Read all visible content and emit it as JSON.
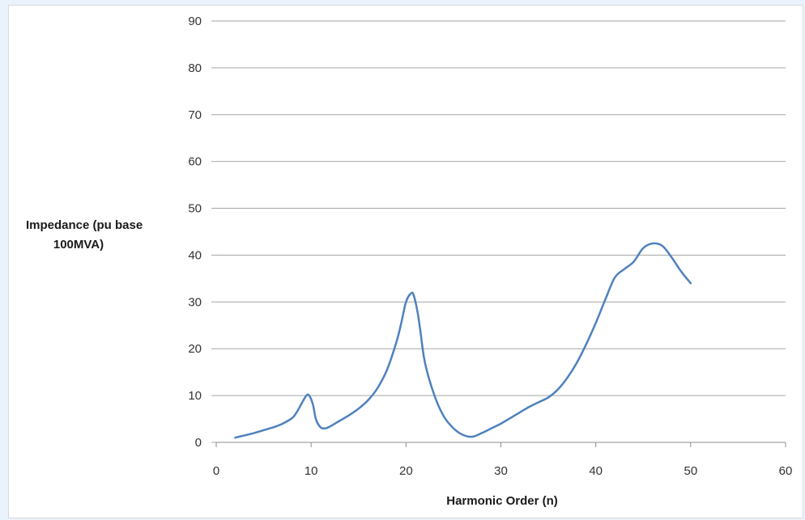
{
  "chart_data": {
    "type": "line",
    "title": "",
    "xlabel": "Harmonic Order (n)",
    "ylabel_lines": [
      "Impedance (pu base",
      "100MVA)"
    ],
    "xlim": [
      0,
      60
    ],
    "ylim": [
      0,
      90
    ],
    "xticks": [
      0,
      10,
      20,
      30,
      40,
      50,
      60
    ],
    "yticks": [
      0,
      10,
      20,
      30,
      40,
      50,
      60,
      70,
      80,
      90
    ],
    "grid": "horizontal",
    "legend": "none",
    "line_color": "#4f81bd",
    "series": [
      {
        "x": [
          2,
          3,
          4,
          5,
          6,
          7,
          8,
          8.5,
          9,
          9.5,
          9.8,
          10.2,
          10.5,
          11,
          11.5,
          12,
          13,
          14,
          15,
          16,
          17,
          18,
          19,
          19.5,
          20,
          20.5,
          20.8,
          21.2,
          21.5,
          22,
          23,
          24,
          25,
          26,
          27,
          28,
          29,
          30,
          31,
          32,
          33,
          34,
          35,
          36,
          37,
          38,
          39,
          40,
          41,
          42,
          43,
          44,
          45,
          46,
          47,
          48,
          49,
          50
        ],
        "values": [
          1,
          1.5,
          2,
          2.6,
          3.2,
          4,
          5.2,
          6.5,
          8.3,
          10,
          10,
          8,
          5,
          3.2,
          3,
          3.4,
          4.6,
          5.8,
          7.2,
          9,
          11.6,
          15.5,
          21.5,
          25.5,
          30,
          31.8,
          31.5,
          28,
          24,
          17,
          10,
          5.5,
          3,
          1.6,
          1.2,
          2,
          3,
          4,
          5.2,
          6.4,
          7.6,
          8.6,
          9.6,
          11.3,
          13.8,
          17,
          21,
          25.5,
          30.5,
          35.2,
          37,
          38.6,
          41.5,
          42.5,
          42,
          39.5,
          36.5,
          34
        ]
      }
    ]
  }
}
